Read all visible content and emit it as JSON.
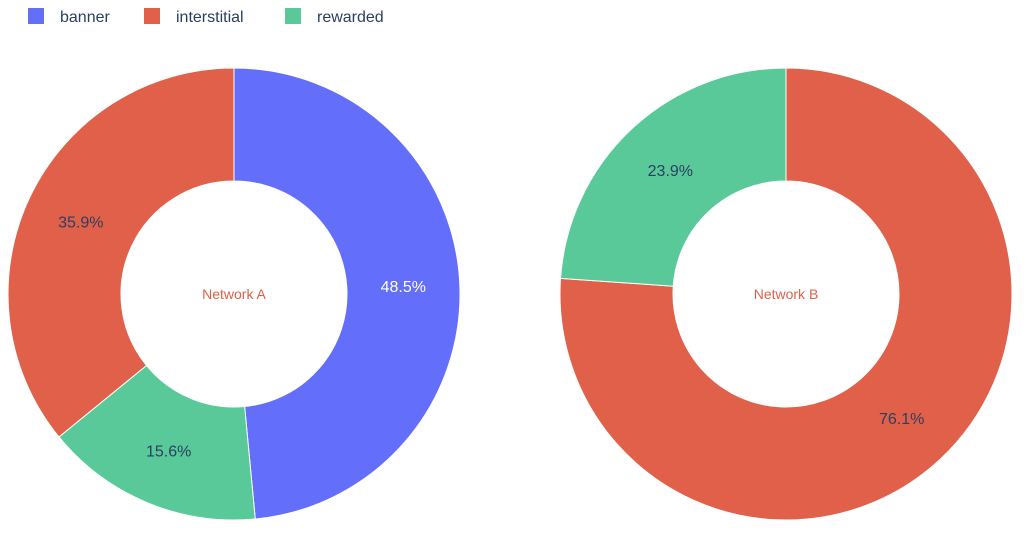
{
  "legend": {
    "items": [
      {
        "label": "banner",
        "color": "#636efa"
      },
      {
        "label": "interstitial",
        "color": "#e0604a"
      },
      {
        "label": "rewarded",
        "color": "#5ac99a"
      }
    ]
  },
  "colors": {
    "banner": "#636efa",
    "interstitial": "#e0604a",
    "rewarded": "#5ac99a",
    "center_text": "#e0604a",
    "slice_label_dark": "#2a3f5f",
    "slice_label_light": "#ffffff"
  },
  "chart_data": [
    {
      "type": "pie",
      "hole": true,
      "center_label": "Network A",
      "slices": [
        {
          "category": "banner",
          "value": 48.5,
          "label": "48.5%"
        },
        {
          "category": "rewarded",
          "value": 15.6,
          "label": "15.6%"
        },
        {
          "category": "interstitial",
          "value": 35.9,
          "label": "35.9%"
        }
      ]
    },
    {
      "type": "pie",
      "hole": true,
      "center_label": "Network B",
      "slices": [
        {
          "category": "interstitial",
          "value": 76.1,
          "label": "76.1%"
        },
        {
          "category": "rewarded",
          "value": 23.9,
          "label": "23.9%"
        }
      ]
    }
  ]
}
